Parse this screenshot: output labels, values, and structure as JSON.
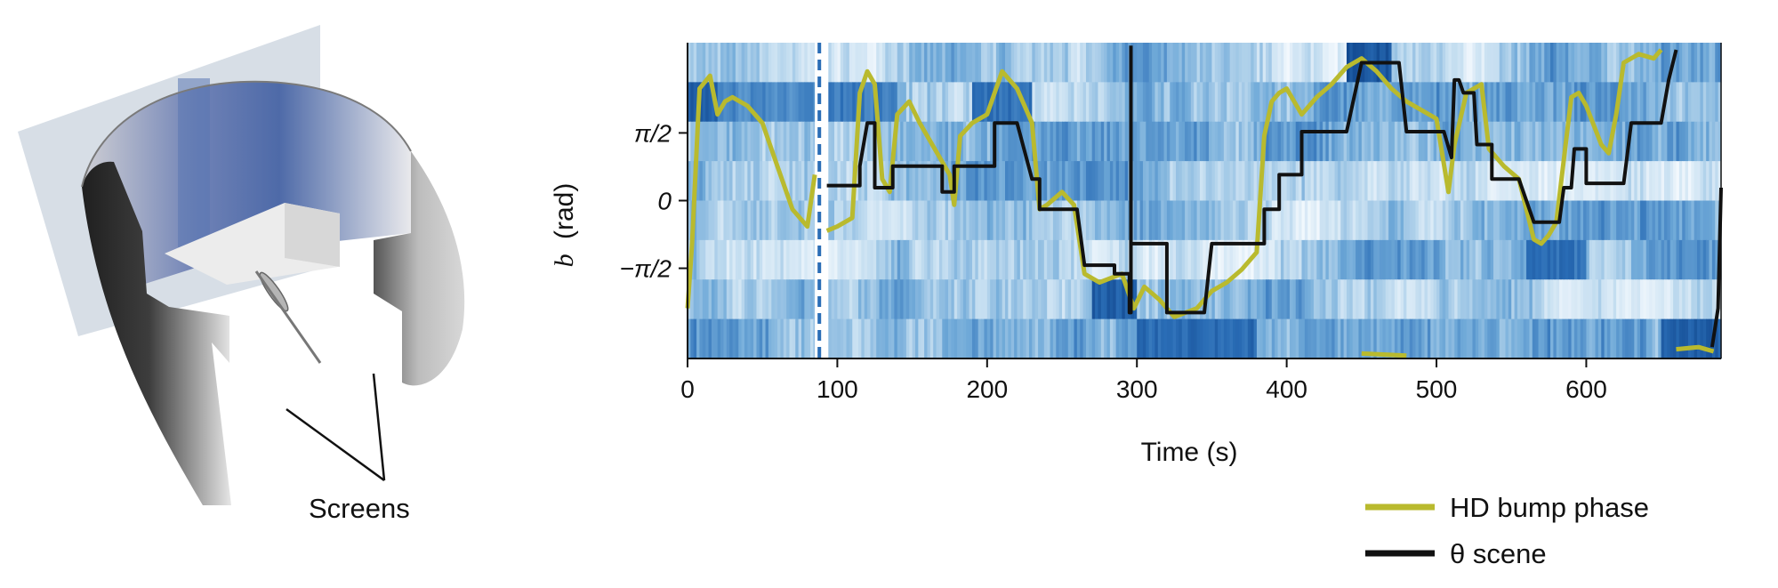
{
  "figure": {
    "left_panel": {
      "annotation": "Screens"
    }
  },
  "chart_data": {
    "type": "heatmap",
    "title": "",
    "xlabel": "Time (s)",
    "ylabel_italic": "b",
    "ylabel_unit": "(rad)",
    "xlim": [
      0,
      690
    ],
    "ylim": [
      -3.6652,
      3.6652
    ],
    "xticks": [
      0,
      100,
      200,
      300,
      400,
      500,
      600
    ],
    "xtick_labels": [
      "0",
      "100",
      "200",
      "300",
      "400",
      "500",
      "600"
    ],
    "yticks": [
      1.5708,
      0,
      -1.5708
    ],
    "ytick_labels": [
      "π/2",
      "0",
      "−π/2"
    ],
    "heatmap_rows": 8,
    "heatmap_colormap": [
      "#f2f8fd",
      "#c3ddf0",
      "#6fa9d8",
      "#2a6db6",
      "#0b3f86"
    ],
    "gap": {
      "start": 85,
      "end": 93
    },
    "heatmap_bumps": [
      {
        "t0": 0,
        "t1": 20,
        "row": 1,
        "level": 0.9
      },
      {
        "t0": 20,
        "t1": 85,
        "row": 1,
        "level": 0.7
      },
      {
        "t0": 93,
        "t1": 140,
        "row": 1,
        "level": 0.75
      },
      {
        "t0": 190,
        "t1": 230,
        "row": 1,
        "level": 0.8
      },
      {
        "t0": 270,
        "t1": 300,
        "row": 6,
        "level": 0.9
      },
      {
        "t0": 300,
        "t1": 380,
        "row": 7,
        "level": 0.85
      },
      {
        "t0": 440,
        "t1": 470,
        "row": 0,
        "level": 0.95
      },
      {
        "t0": 560,
        "t1": 600,
        "row": 5,
        "level": 0.8
      },
      {
        "t0": 650,
        "t1": 690,
        "row": 7,
        "level": 0.9
      }
    ],
    "series": [
      {
        "name": "HD bump phase",
        "color": "#b9ba2e",
        "segments": [
          [
            [
              0,
              -2.5
            ],
            [
              3,
              -1.0
            ],
            [
              8,
              2.6
            ],
            [
              15,
              2.9
            ],
            [
              20,
              2.0
            ],
            [
              25,
              2.3
            ],
            [
              30,
              2.4
            ],
            [
              40,
              2.2
            ],
            [
              50,
              1.8
            ],
            [
              60,
              0.8
            ],
            [
              70,
              -0.2
            ],
            [
              80,
              -0.6
            ],
            [
              85,
              0.6
            ]
          ],
          [
            [
              93,
              -0.7
            ],
            [
              100,
              -0.6
            ],
            [
              110,
              -0.4
            ],
            [
              115,
              2.5
            ],
            [
              120,
              3.0
            ],
            [
              125,
              2.7
            ],
            [
              130,
              0.5
            ],
            [
              135,
              0.2
            ],
            [
              140,
              2.0
            ],
            [
              148,
              2.3
            ],
            [
              155,
              1.8
            ],
            [
              165,
              1.2
            ],
            [
              175,
              0.6
            ],
            [
              178,
              -0.1
            ],
            [
              182,
              1.5
            ],
            [
              190,
              1.8
            ],
            [
              200,
              2.0
            ],
            [
              210,
              3.0
            ],
            [
              220,
              2.6
            ],
            [
              230,
              1.8
            ],
            [
              235,
              -0.2
            ],
            [
              240,
              -0.1
            ],
            [
              250,
              0.2
            ],
            [
              258,
              -0.1
            ],
            [
              265,
              -1.7
            ],
            [
              275,
              -1.9
            ],
            [
              290,
              -1.7
            ],
            [
              298,
              -2.5
            ],
            [
              305,
              -2.0
            ],
            [
              315,
              -2.3
            ],
            [
              325,
              -2.7
            ],
            [
              340,
              -2.5
            ],
            [
              350,
              -2.1
            ],
            [
              360,
              -1.9
            ],
            [
              370,
              -1.6
            ],
            [
              380,
              -1.2
            ],
            [
              385,
              1.5
            ],
            [
              390,
              2.3
            ],
            [
              395,
              2.5
            ],
            [
              400,
              2.6
            ],
            [
              410,
              2.0
            ],
            [
              420,
              2.4
            ],
            [
              430,
              2.7
            ],
            [
              440,
              3.1
            ],
            [
              450,
              3.3
            ],
            [
              460,
              3.0
            ],
            [
              470,
              2.6
            ],
            [
              480,
              2.3
            ],
            [
              490,
              2.1
            ],
            [
              500,
              1.9
            ],
            [
              508,
              0.2
            ],
            [
              512,
              1.3
            ],
            [
              520,
              2.5
            ],
            [
              530,
              2.7
            ],
            [
              535,
              1.2
            ],
            [
              545,
              0.8
            ],
            [
              555,
              0.5
            ],
            [
              565,
              -0.9
            ],
            [
              570,
              -1.0
            ],
            [
              575,
              -0.8
            ],
            [
              580,
              -0.5
            ],
            [
              590,
              2.4
            ],
            [
              595,
              2.5
            ],
            [
              600,
              2.2
            ],
            [
              610,
              1.3
            ],
            [
              615,
              1.1
            ],
            [
              620,
              2.0
            ],
            [
              625,
              3.2
            ],
            [
              635,
              3.4
            ],
            [
              645,
              3.3
            ],
            [
              650,
              3.5
            ]
          ],
          [
            [
              450,
              -3.55
            ],
            [
              480,
              -3.6
            ]
          ],
          [
            [
              660,
              -3.45
            ],
            [
              675,
              -3.4
            ],
            [
              685,
              -3.5
            ]
          ]
        ]
      },
      {
        "name": "θ scene",
        "color": "#111111",
        "segments": [
          [
            [
              93,
              0.35
            ],
            [
              115,
              0.35
            ],
            [
              115,
              0.8
            ],
            [
              120,
              1.8
            ],
            [
              125,
              1.8
            ],
            [
              125,
              0.3
            ],
            [
              137,
              0.3
            ],
            [
              137,
              0.8
            ],
            [
              160,
              0.8
            ],
            [
              160,
              0.8
            ],
            [
              170,
              0.8
            ],
            [
              170,
              0.2
            ],
            [
              178,
              0.2
            ],
            [
              178,
              0.8
            ],
            [
              205,
              0.8
            ],
            [
              205,
              1.8
            ],
            [
              215,
              1.8
            ],
            [
              220,
              1.8
            ],
            [
              230,
              0.5
            ],
            [
              235,
              0.5
            ],
            [
              235,
              -0.2
            ],
            [
              260,
              -0.2
            ],
            [
              265,
              -1.5
            ],
            [
              285,
              -1.5
            ],
            [
              285,
              -1.7
            ],
            [
              295,
              -1.7
            ],
            [
              295,
              -2.6
            ],
            [
              296,
              -2.6
            ],
            [
              296,
              3.6
            ]
          ],
          [
            [
              296,
              -1.0
            ],
            [
              320,
              -1.0
            ],
            [
              320,
              -2.6
            ],
            [
              340,
              -2.6
            ],
            [
              345,
              -2.6
            ],
            [
              350,
              -1.0
            ],
            [
              385,
              -1.0
            ],
            [
              385,
              -0.2
            ],
            [
              395,
              -0.2
            ],
            [
              395,
              0.6
            ],
            [
              410,
              0.6
            ],
            [
              410,
              1.6
            ],
            [
              430,
              1.6
            ],
            [
              440,
              1.6
            ],
            [
              450,
              3.2
            ],
            [
              475,
              3.2
            ],
            [
              480,
              1.6
            ],
            [
              505,
              1.6
            ],
            [
              510,
              1.0
            ],
            [
              512,
              2.8
            ],
            [
              515,
              2.8
            ],
            [
              518,
              2.5
            ],
            [
              525,
              2.5
            ],
            [
              527,
              1.3
            ],
            [
              537,
              1.3
            ],
            [
              537,
              0.5
            ],
            [
              540,
              0.5
            ],
            [
              555,
              0.5
            ],
            [
              565,
              -0.5
            ],
            [
              580,
              -0.5
            ],
            [
              582,
              -0.5
            ],
            [
              585,
              0.3
            ],
            [
              590,
              0.3
            ],
            [
              592,
              1.2
            ],
            [
              600,
              1.2
            ],
            [
              600,
              0.4
            ],
            [
              625,
              0.4
            ],
            [
              630,
              1.8
            ],
            [
              650,
              1.8
            ],
            [
              655,
              2.8
            ],
            [
              660,
              3.5
            ]
          ],
          [
            [
              684,
              -3.4
            ],
            [
              688,
              -2.5
            ],
            [
              690,
              0.3
            ]
          ]
        ]
      }
    ],
    "legend": {
      "placement": "bottom-right",
      "entries": [
        {
          "label": "HD bump phase",
          "color": "#b9ba2e"
        },
        {
          "label": "θ scene",
          "color": "#111111"
        }
      ]
    }
  }
}
